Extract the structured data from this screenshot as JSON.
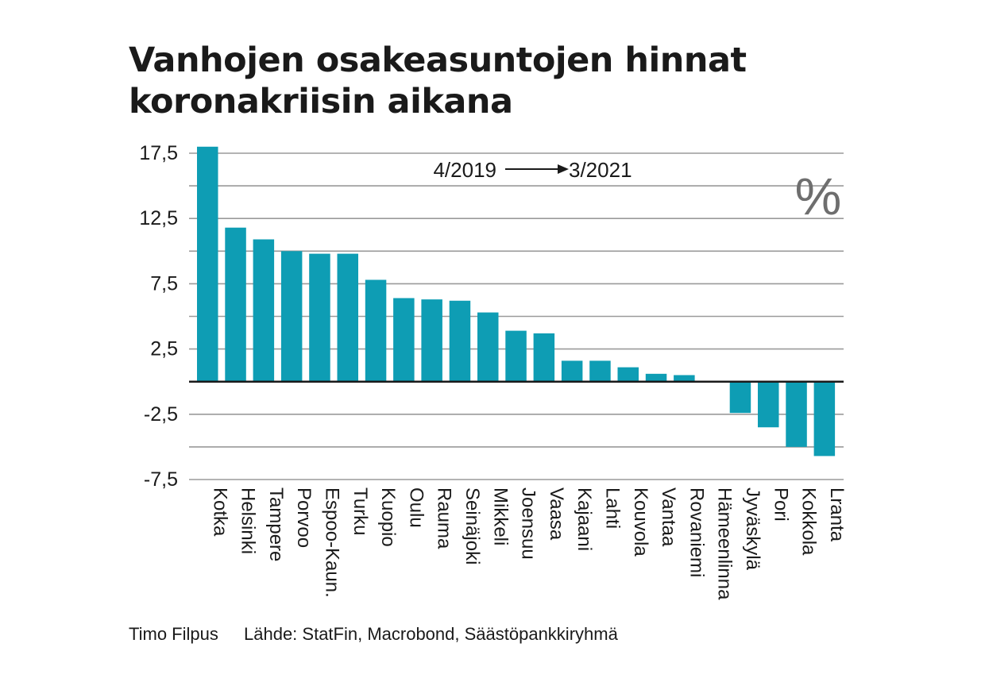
{
  "title_lines": [
    "Vanhojen osakeasuntojen hinnat",
    "koronakriisin aikana"
  ],
  "period": {
    "from": "4/2019",
    "to": "3/2021"
  },
  "unit_symbol": "%",
  "footer": {
    "author": "Timo Filpus",
    "source": "Lähde: StatFin, Macrobond, Säästöpankkiryhmä"
  },
  "colors": {
    "bar": "#0e9db4",
    "grid": "#9a9a9a",
    "zero": "#1a1a1a",
    "text": "#1a1a1a"
  },
  "chart_data": {
    "type": "bar",
    "categories": [
      "Kotka",
      "Helsinki",
      "Tampere",
      "Porvoo",
      "Espoo-Kaun.",
      "Turku",
      "Kuopio",
      "Oulu",
      "Rauma",
      "Seinäjoki",
      "Mikkeli",
      "Joensuu",
      "Vaasa",
      "Kajaani",
      "Lahti",
      "Kouvola",
      "Vantaa",
      "Rovaniemi",
      "Hämeenlinna",
      "Jyväskylä",
      "Pori",
      "Kokkola",
      "Lranta"
    ],
    "values": [
      18.0,
      11.8,
      10.9,
      10.0,
      9.8,
      9.8,
      7.8,
      6.4,
      6.3,
      6.2,
      5.3,
      3.9,
      3.7,
      1.6,
      1.6,
      1.1,
      0.6,
      0.5,
      0.0,
      -2.4,
      -3.5,
      -5.0,
      -5.7
    ],
    "ylim": [
      -7.5,
      17.5
    ],
    "yticks": [
      -7.5,
      -2.5,
      2.5,
      7.5,
      12.5,
      17.5
    ],
    "ytick_labels": [
      "-7,5",
      "-2,5",
      "2,5",
      "7,5",
      "12,5",
      "17,5"
    ],
    "gridlines": [
      -7.5,
      -5,
      -2.5,
      2.5,
      5,
      7.5,
      10,
      12.5,
      15,
      17.5
    ],
    "grid": true
  }
}
